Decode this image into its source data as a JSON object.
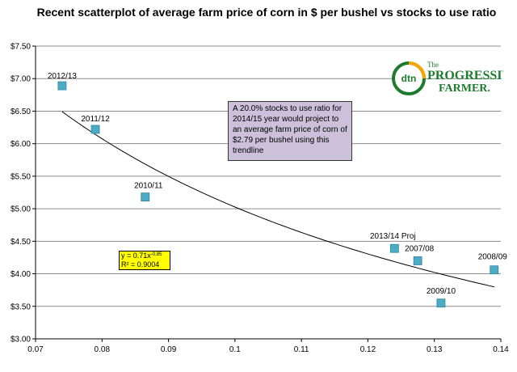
{
  "chart_data": {
    "type": "scatter",
    "title": "Recent scatterplot of average farm price of corn in $ per bushel vs stocks to use ratio",
    "xlim": [
      0.07,
      0.14
    ],
    "ylim": [
      3.0,
      7.5
    ],
    "x_ticks": [
      0.07,
      0.08,
      0.09,
      0.1,
      0.11,
      0.12,
      0.13,
      0.14
    ],
    "x_tick_labels": [
      "0.07",
      "0.08",
      "0.09",
      "0.1",
      "0.11",
      "0.12",
      "0.13",
      "0.14"
    ],
    "y_ticks": [
      3.0,
      3.5,
      4.0,
      4.5,
      5.0,
      5.5,
      6.0,
      6.5,
      7.0,
      7.5
    ],
    "y_tick_labels": [
      "$3.00",
      "$3.50",
      "$4.00",
      "$4.50",
      "$5.00",
      "$5.50",
      "$6.00",
      "$6.50",
      "$7.00",
      "$7.50"
    ],
    "grid": "horizontal",
    "point_color": "#4bacc6",
    "points": [
      {
        "label": "2012/13",
        "x": 0.074,
        "y": 6.89
      },
      {
        "label": "2011/12",
        "x": 0.079,
        "y": 6.22
      },
      {
        "label": "2010/11",
        "x": 0.0865,
        "y": 5.18
      },
      {
        "label": "2013/14 Proj",
        "x": 0.124,
        "y": 4.39
      },
      {
        "label": "2007/08",
        "x": 0.1275,
        "y": 4.2
      },
      {
        "label": "2009/10",
        "x": 0.131,
        "y": 3.55
      },
      {
        "label": "2008/09",
        "x": 0.139,
        "y": 4.06
      }
    ],
    "trendline": {
      "type": "power",
      "coefficient": 0.71,
      "exponent": -0.85,
      "x_range": [
        0.074,
        0.139
      ],
      "equation_prefix": "y = 0.71x",
      "equation_exponent": "-0.85",
      "r_squared_label": "R² = 0.9004"
    },
    "annotation": "A 20.0% stocks to use ratio for 2014/15 year would project to an average farm price of corn of $2.79 per bushel using this trendline"
  },
  "logo": {
    "mark": "dtn",
    "small": "The",
    "line1": "PROGRESSIVE",
    "line2": "FARMER."
  }
}
